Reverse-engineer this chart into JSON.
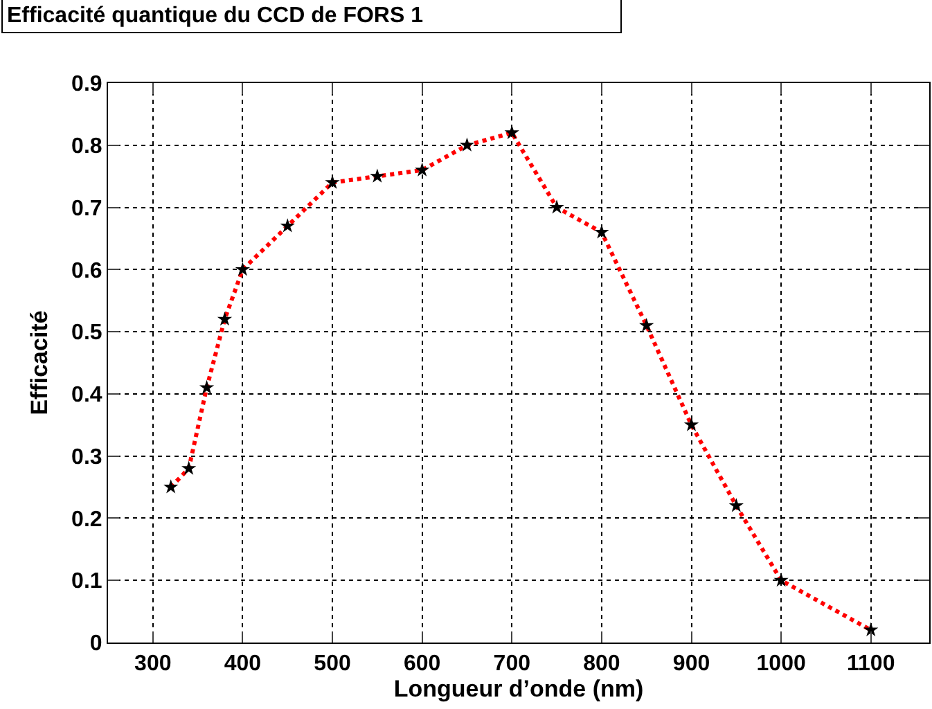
{
  "chart_data": {
    "type": "line",
    "title": "Efficacité quantique du CCD de FORS 1",
    "xlabel": "Longueur d’onde (nm)",
    "ylabel": "Efficacité",
    "x": [
      320,
      340,
      360,
      380,
      400,
      450,
      500,
      550,
      600,
      650,
      700,
      750,
      800,
      850,
      900,
      950,
      1000,
      1100
    ],
    "series": [
      {
        "color": "#ff0000",
        "values": [
          0.25,
          0.28,
          0.41,
          0.52,
          0.6,
          0.67,
          0.74,
          0.75,
          0.76,
          0.8,
          0.82,
          0.7,
          0.66,
          0.51,
          0.35,
          0.22,
          0.1,
          0.02
        ]
      }
    ],
    "xlim": [
      250,
      1165
    ],
    "xticks": [
      300,
      400,
      500,
      600,
      700,
      800,
      900,
      1000,
      1100
    ],
    "ylim": [
      0,
      0.9
    ],
    "yticks": [
      0,
      0.1,
      0.2,
      0.3,
      0.4,
      0.5,
      0.6,
      0.7,
      0.8,
      0.9
    ],
    "grid": true,
    "marker": "star",
    "line_style": "dotted"
  }
}
